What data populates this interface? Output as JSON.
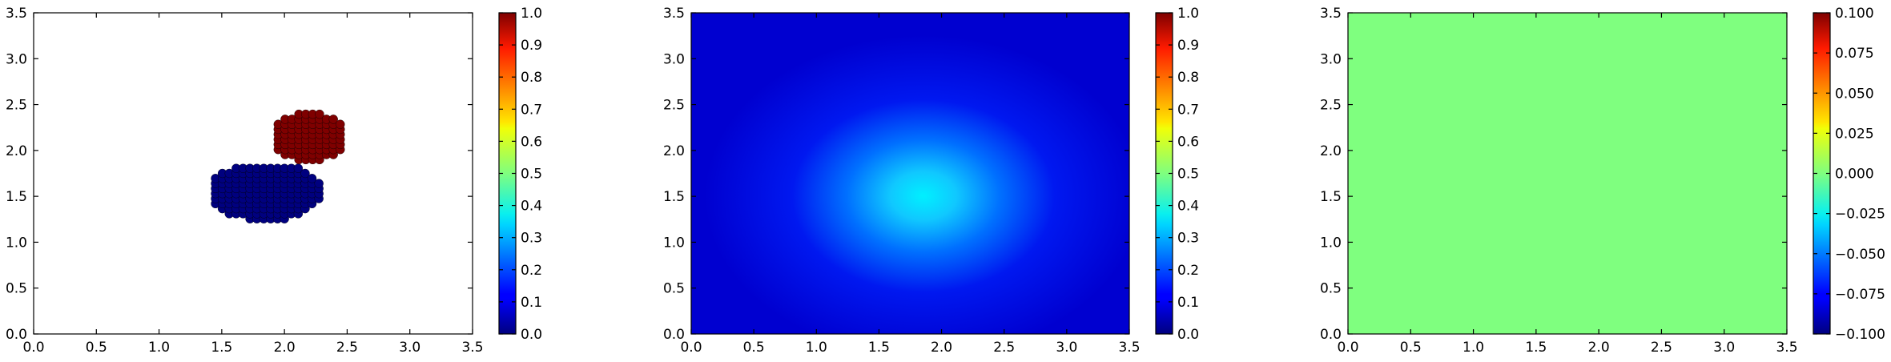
{
  "chart_data": [
    {
      "type": "scatter",
      "xlim": [
        0,
        3.5
      ],
      "ylim": [
        0,
        3.5
      ],
      "xticks": [
        "0.0",
        "0.5",
        "1.0",
        "1.5",
        "2.0",
        "2.5",
        "3.0",
        "3.5"
      ],
      "yticks": [
        "0.0",
        "0.5",
        "1.0",
        "1.5",
        "2.0",
        "2.5",
        "3.0",
        "3.5"
      ],
      "colormap": "jet",
      "grid": false,
      "clusters": [
        {
          "value": 0.0,
          "color": "#00007f",
          "center": [
            1.85,
            1.55
          ],
          "radius_x": 0.45,
          "radius_y": 0.32,
          "x_range": [
            1.45,
            2.4
          ],
          "y_range": [
            1.2,
            1.85
          ]
        },
        {
          "value": 1.0,
          "color": "#7f0000",
          "center": [
            2.2,
            2.15
          ],
          "radius_x": 0.3,
          "radius_y": 0.27,
          "x_range": [
            1.95,
            2.5
          ],
          "y_range": [
            1.9,
            2.45
          ]
        }
      ],
      "colorbar": {
        "min": 0.0,
        "max": 1.0,
        "ticks": [
          "0.0",
          "0.1",
          "0.2",
          "0.3",
          "0.4",
          "0.5",
          "0.6",
          "0.7",
          "0.8",
          "0.9",
          "1.0"
        ]
      }
    },
    {
      "type": "heatmap",
      "xlim": [
        0,
        3.5
      ],
      "ylim": [
        0,
        3.5
      ],
      "xticks": [
        "0.0",
        "0.5",
        "1.0",
        "1.5",
        "2.0",
        "2.5",
        "3.0",
        "3.5"
      ],
      "yticks": [
        "0.0",
        "0.5",
        "1.0",
        "1.5",
        "2.0",
        "2.5",
        "3.0",
        "3.5"
      ],
      "colormap": "jet",
      "grid": false,
      "field": {
        "peak_value": 0.42,
        "peak_center": [
          1.85,
          1.5
        ],
        "spread_x": 0.85,
        "spread_y": 0.5,
        "background_value": 0.12
      },
      "colorbar": {
        "min": 0.0,
        "max": 1.0,
        "ticks": [
          "0.0",
          "0.1",
          "0.2",
          "0.3",
          "0.4",
          "0.5",
          "0.6",
          "0.7",
          "0.8",
          "0.9",
          "1.0"
        ]
      }
    },
    {
      "type": "heatmap",
      "xlim": [
        0,
        3.5
      ],
      "ylim": [
        0,
        3.5
      ],
      "xticks": [
        "0.0",
        "0.5",
        "1.0",
        "1.5",
        "2.0",
        "2.5",
        "3.0",
        "3.5"
      ],
      "yticks": [
        "0.0",
        "0.5",
        "1.0",
        "1.5",
        "2.0",
        "2.5",
        "3.0",
        "3.5"
      ],
      "colormap": "jet",
      "grid": false,
      "field": {
        "uniform_value": 0.0,
        "color": "#7fff7f"
      },
      "colorbar": {
        "min": -0.1,
        "max": 0.1,
        "ticks": [
          "−0.100",
          "−0.075",
          "−0.050",
          "−0.025",
          "0.000",
          "0.025",
          "0.050",
          "0.075",
          "0.100"
        ]
      }
    }
  ]
}
